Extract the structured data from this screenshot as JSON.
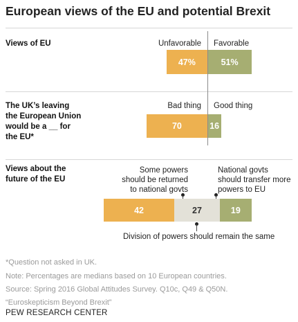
{
  "title": "European views of the EU and potential Brexit",
  "chart_data": [
    {
      "type": "bar",
      "orientation": "horizontal-diverging",
      "category": "Views of EU",
      "series": [
        {
          "name": "Unfavorable",
          "value": 47,
          "label": "47%",
          "color": "#EDB150"
        },
        {
          "name": "Favorable",
          "value": 51,
          "label": "51%",
          "color": "#A6AE72"
        }
      ]
    },
    {
      "type": "bar",
      "orientation": "horizontal-diverging",
      "category": "The UK's leaving the European Union would be a __ for the EU*",
      "series": [
        {
          "name": "Bad thing",
          "value": 70,
          "label": "70",
          "color": "#EDB150"
        },
        {
          "name": "Good thing",
          "value": 16,
          "label": "16",
          "color": "#A6AE72"
        }
      ]
    },
    {
      "type": "bar",
      "orientation": "horizontal-stacked",
      "category": "Views about the future of the EU",
      "series": [
        {
          "name": "Some powers should be returned to national govts",
          "value": 42,
          "label": "42",
          "color": "#EDB150"
        },
        {
          "name": "Division of powers should remain the same",
          "value": 27,
          "label": "27",
          "color": "#E3E1D8"
        },
        {
          "name": "National govts should transfer more powers to EU",
          "value": 19,
          "label": "19",
          "color": "#A6AE72"
        }
      ]
    }
  ],
  "rows": {
    "r1": {
      "label_lines": [
        "Views of EU"
      ],
      "left_label": "Unfavorable",
      "right_label": "Favorable"
    },
    "r2": {
      "label_lines": [
        "The UK’s leaving",
        "the European Union",
        "would be a __ for",
        "the EU*"
      ],
      "left_label": "Bad thing",
      "right_label": "Good thing"
    },
    "r3": {
      "label_lines": [
        "Views about the",
        "future of the EU"
      ],
      "ann_left": [
        "Some powers",
        "should be returned",
        "to national govts"
      ],
      "ann_right": [
        "National govts",
        "should transfer more",
        "powers to EU"
      ],
      "ann_bottom": "Division of powers should remain the same"
    }
  },
  "notes": [
    "*Question not asked in UK.",
    "Note: Percentages are medians based on 10 European countries.",
    "Source: Spring 2016 Global Attitudes Survey. Q10c, Q49 & Q50N.",
    "“Euroskepticism Beyond Brexit”"
  ],
  "org": "PEW RESEARCH CENTER"
}
